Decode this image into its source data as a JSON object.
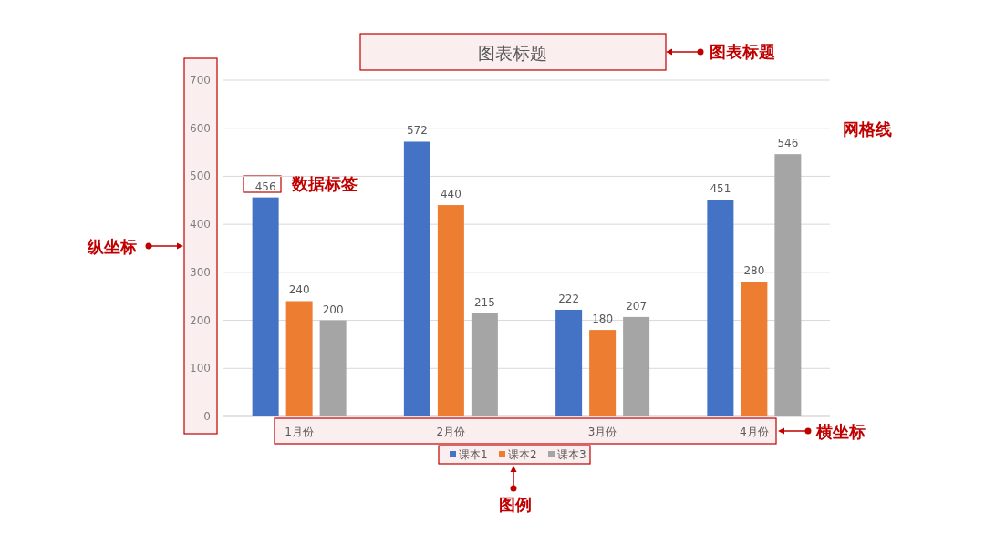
{
  "chart_data": {
    "type": "bar",
    "title": "图表标题",
    "categories": [
      "1月份",
      "2月份",
      "3月份",
      "4月份"
    ],
    "series": [
      {
        "name": "课本1",
        "color": "#4472c4",
        "values": [
          456,
          572,
          222,
          451
        ]
      },
      {
        "name": "课本2",
        "color": "#ed7d31",
        "values": [
          240,
          440,
          180,
          280
        ]
      },
      {
        "name": "课本3",
        "color": "#a5a5a5",
        "values": [
          200,
          215,
          207,
          546
        ]
      }
    ],
    "ylim": [
      0,
      700
    ],
    "yticks": [
      0,
      100,
      200,
      300,
      400,
      500,
      600,
      700
    ],
    "grid": "y",
    "legend": "bottom",
    "data_labels": true,
    "annotations": [
      "图表标题",
      "网格线",
      "数据标签",
      "纵坐标",
      "横坐标",
      "图例"
    ]
  }
}
